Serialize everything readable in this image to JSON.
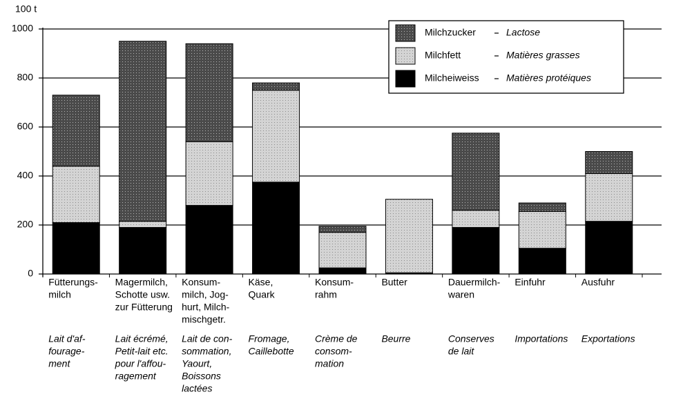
{
  "chart_data": {
    "type": "stacked_bar",
    "y_unit": "100 t",
    "categories": [
      [
        "Fütterungs-",
        "milch"
      ],
      [
        "Magermilch,",
        "Schotte usw.",
        "zur Fütterung"
      ],
      [
        "Konsum-",
        "milch, Jog-",
        "hurt, Milch-",
        "mischgetr."
      ],
      [
        "Käse,",
        "Quark"
      ],
      [
        "Konsum-",
        "rahm"
      ],
      [
        "Butter"
      ],
      [
        "Dauermilch-",
        "waren"
      ],
      [
        "Einfuhr"
      ],
      [
        "Ausfuhr"
      ]
    ],
    "categories_fr": [
      [
        "Lait d'af-",
        "fourage-",
        "ment"
      ],
      [
        "Lait écrémé,",
        "Petit-lait etc.",
        "pour l'affou-",
        "ragement"
      ],
      [
        "Lait de con-",
        "sommation,",
        "Yaourt,",
        "Boissons",
        "lactées"
      ],
      [
        "Fromage,",
        "Caillebotte"
      ],
      [
        "Crème de",
        "consom-",
        "mation"
      ],
      [
        "Beurre"
      ],
      [
        "Conserves",
        "de lait"
      ],
      [
        "Importations"
      ],
      [
        "Exportations"
      ]
    ],
    "series": [
      {
        "name": "Milcheiweiss",
        "name_fr": "Matières protéiques",
        "color": "#000000",
        "values": [
          210,
          190,
          280,
          375,
          25,
          5,
          190,
          105,
          215
        ]
      },
      {
        "name": "Milchfett",
        "name_fr": "Matières grasses",
        "color": "#d4d4d4",
        "values": [
          230,
          25,
          260,
          375,
          145,
          300,
          70,
          150,
          195
        ]
      },
      {
        "name": "Milchzucker",
        "name_fr": "Lactose",
        "color": "#4a4a4a",
        "values": [
          290,
          735,
          400,
          30,
          25,
          0,
          315,
          35,
          90
        ]
      }
    ],
    "ylim": [
      0,
      1000
    ],
    "yticks": [
      0,
      200,
      400,
      600,
      800,
      1000
    ],
    "grid": true,
    "legend": "top-right"
  }
}
